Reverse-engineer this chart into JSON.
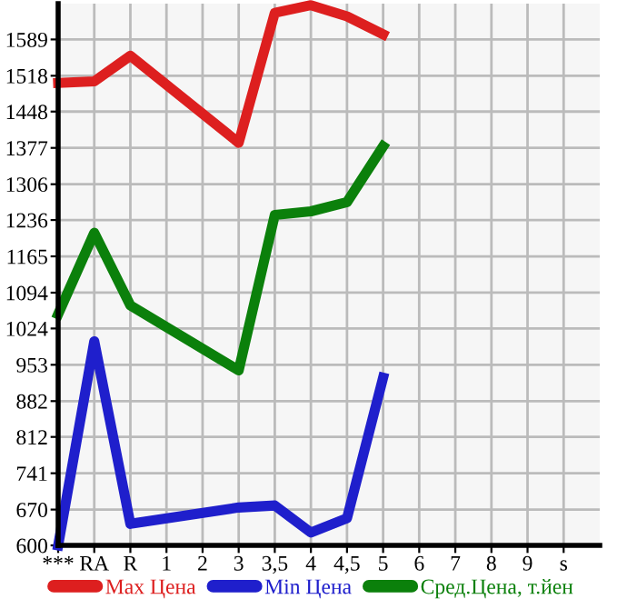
{
  "chart_data": {
    "type": "line",
    "categories": [
      "***",
      "RA",
      "R",
      "1",
      "2",
      "3",
      "3,5",
      "4",
      "4,5",
      "5",
      "6",
      "7",
      "8",
      "9",
      "s"
    ],
    "series": [
      {
        "name": "Max Цена",
        "color": "#dd1f1f",
        "values": [
          1504,
          1507,
          1557,
          null,
          null,
          1387,
          1641,
          1656,
          1634,
          1599,
          null,
          null,
          null,
          null,
          null
        ]
      },
      {
        "name": "Min Цена",
        "color": "#1f1fcc",
        "values": [
          600,
          999,
          642,
          null,
          null,
          674,
          678,
          625,
          653,
          928,
          null,
          null,
          null,
          null,
          null
        ]
      },
      {
        "name": "Сред.Цена, т.йен",
        "color": "#0b800b",
        "values": [
          1052,
          1211,
          1069,
          null,
          null,
          942,
          1246,
          1253,
          1271,
          1380,
          null,
          null,
          null,
          null,
          null
        ]
      }
    ],
    "ylim": [
      600,
      1659
    ],
    "yticks": [
      600,
      670,
      741,
      812,
      882,
      953,
      1024,
      1094,
      1165,
      1236,
      1306,
      1377,
      1448,
      1518,
      1589
    ],
    "grid": true,
    "legend": "bottom",
    "marker": "none",
    "line_style": "solid"
  }
}
